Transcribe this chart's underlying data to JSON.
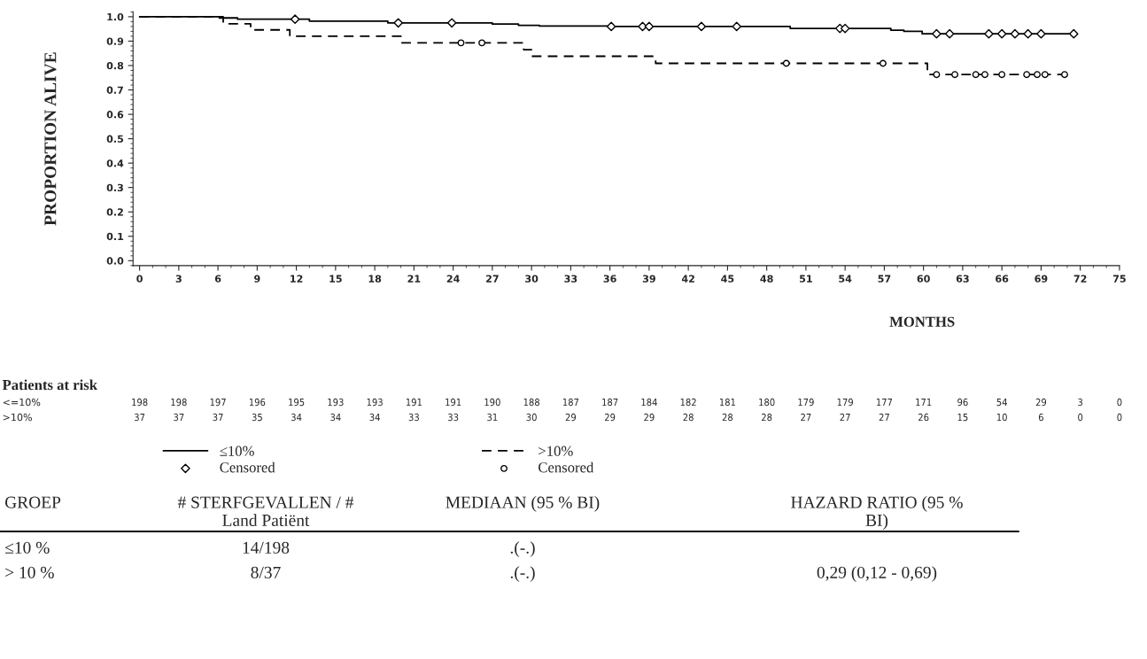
{
  "chart_data": {
    "type": "step",
    "ylabel": "PROPORTION ALIVE",
    "xlabel": "MONTHS",
    "xlim": [
      -0.5,
      75
    ],
    "ylim": [
      -0.02,
      1.02
    ],
    "xticks": [
      0,
      3,
      6,
      9,
      12,
      15,
      18,
      21,
      24,
      27,
      30,
      33,
      36,
      39,
      42,
      45,
      48,
      51,
      54,
      57,
      60,
      63,
      66,
      69,
      72,
      75
    ],
    "yticks": [
      {
        "value": 0,
        "label": "0.0"
      },
      {
        "value": 0.1,
        "label": "0.1"
      },
      {
        "value": 0.2,
        "label": "0.2"
      },
      {
        "value": 0.3,
        "label": "0.3"
      },
      {
        "value": 0.4,
        "label": "0.4"
      },
      {
        "value": 0.5,
        "label": "0.5"
      },
      {
        "value": 0.6,
        "label": "0.6"
      },
      {
        "value": 0.7,
        "label": "0.7"
      },
      {
        "value": 0.8,
        "label": "0.8"
      },
      {
        "value": 0.9,
        "label": "0.9"
      },
      {
        "value": 1.0,
        "label": "1.0"
      }
    ],
    "grid": false,
    "legend": "bottom",
    "series": [
      {
        "name": "≤10%",
        "color": "#000000",
        "line_style": "solid",
        "marker": "none",
        "x": [
          0,
          6.1,
          7.5,
          13,
          19,
          27,
          29,
          30.6,
          36.2,
          49.8,
          57.5,
          58.5,
          59.9,
          71.5
        ],
        "values": [
          1.0,
          0.995,
          0.99,
          0.982,
          0.975,
          0.97,
          0.965,
          0.962,
          0.96,
          0.952,
          0.945,
          0.94,
          0.93,
          0.93
        ]
      },
      {
        "name": "Censored",
        "type": "scatter",
        "color": "#000000",
        "marker": "diamond",
        "x": [
          11.9,
          19.8,
          23.9,
          36.1,
          38.5,
          39,
          43,
          45.7,
          53.6,
          54,
          61,
          62,
          65,
          66,
          67,
          68,
          69,
          71.5
        ],
        "values": [
          0.99,
          0.975,
          0.975,
          0.96,
          0.96,
          0.96,
          0.96,
          0.96,
          0.952,
          0.952,
          0.93,
          0.93,
          0.93,
          0.93,
          0.93,
          0.93,
          0.93,
          0.93
        ]
      },
      {
        "name": ">10%",
        "color": "#000000",
        "line_style": "dashed",
        "marker": "none",
        "x": [
          0,
          6.4,
          8.5,
          11.5,
          20,
          29.4,
          30,
          39.5,
          60.3,
          70.8
        ],
        "values": [
          1.0,
          0.971,
          0.946,
          0.92,
          0.893,
          0.865,
          0.838,
          0.809,
          0.763,
          0.763
        ]
      },
      {
        "name": "Censored",
        "type": "scatter",
        "color": "#000000",
        "marker": "circle",
        "x": [
          24.6,
          26.2,
          49.5,
          56.9,
          61,
          62.4,
          64,
          64.7,
          66,
          67.9,
          68.7,
          69.3,
          70.8
        ],
        "values": [
          0.893,
          0.893,
          0.809,
          0.809,
          0.763,
          0.763,
          0.763,
          0.763,
          0.763,
          0.763,
          0.763,
          0.763,
          0.763
        ]
      }
    ],
    "annotations": [
      "Patients at risk",
      "<=10%\t198\t198\t197\t196\t195\t193\t193\t191\t191\t190\t188\t187\t187\t184\t182\t181\t180\t179\t179\t177\t171\t96\t54\t29\t3\t0",
      ">10%\t37\t37\t37\t35\t34\t34\t34\t33\t33\t31\t30\t29\t29\t29\t28\t28\t28\t27\t27\t27\t26\t15\t10\t6\t0\t0",
      "GROEP\t# STERFGEVALLEN / #\nLand Patiënt\tMEDIAAN (95 % BI)\tHAZARD RATIO (95 %\nBI)",
      "≤10 %\t14/198\t.(-.)\t",
      "> 10 %\t8/37\t.(-.)\t0,29 (0,12 - 0,69)"
    ]
  }
}
